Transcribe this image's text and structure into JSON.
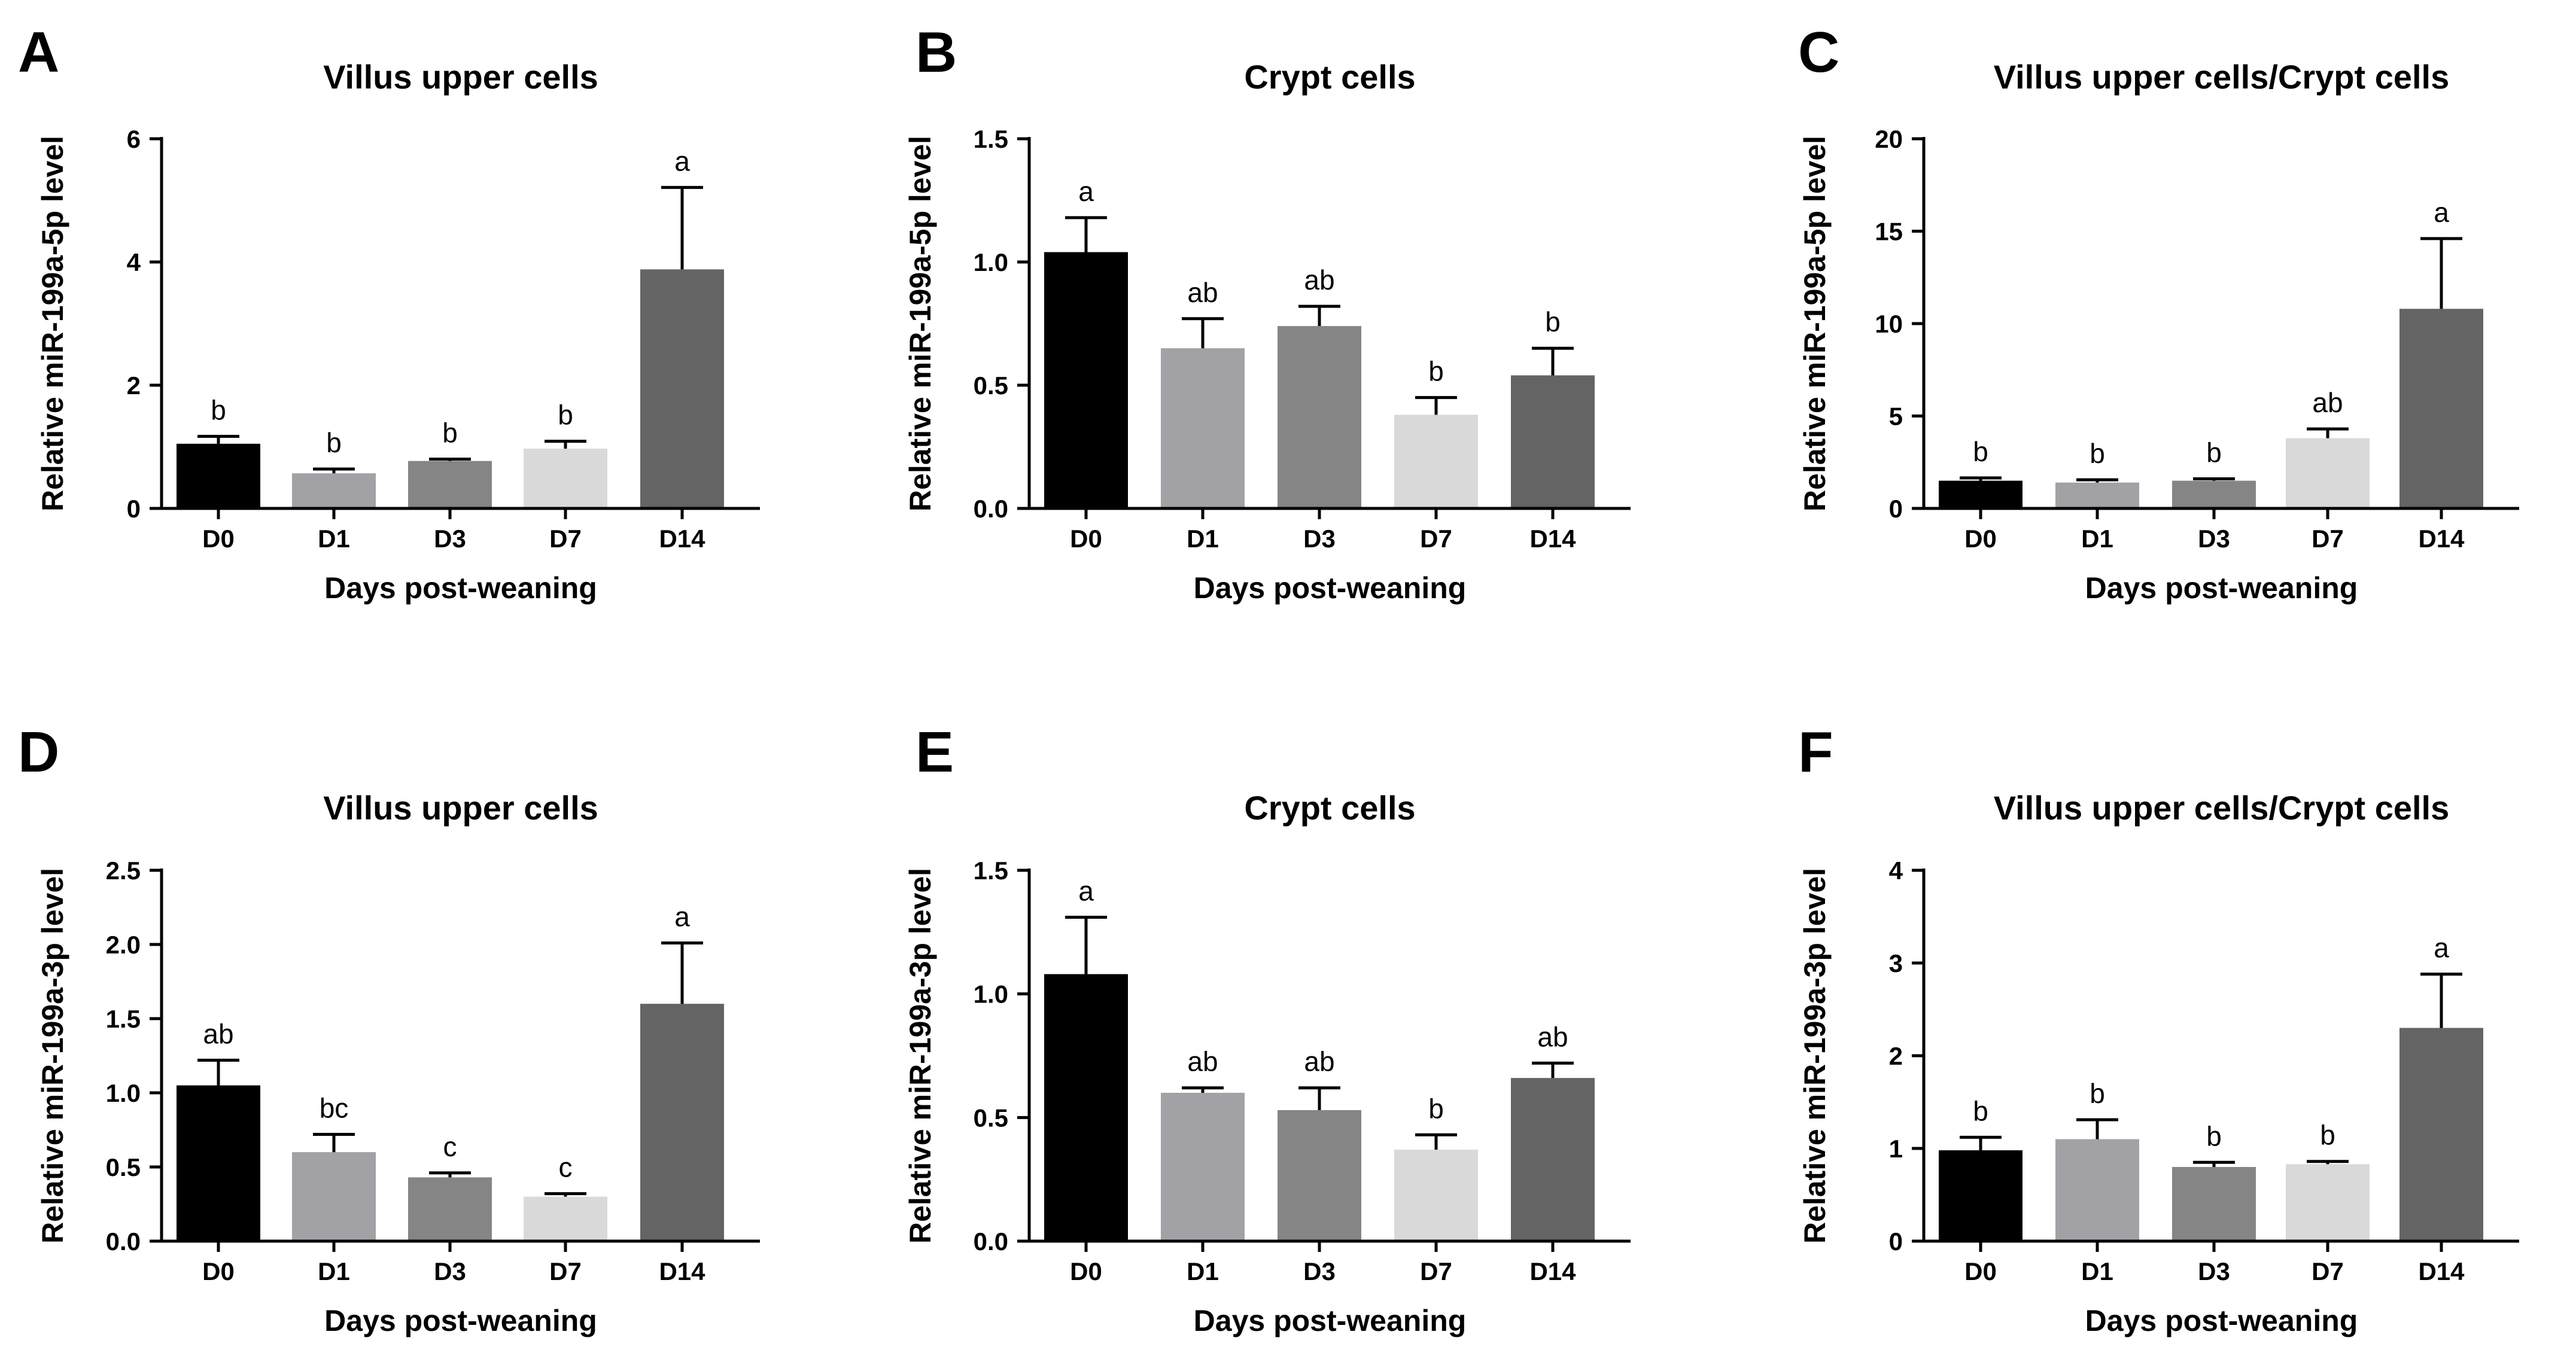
{
  "figure": {
    "name": "miR-199a post-weaning expression panels"
  },
  "colors": [
    "#000000",
    "#a2a2a6",
    "#858585",
    "#d9d9d9",
    "#646464"
  ],
  "chart_data": [
    {
      "panel": "A",
      "type": "bar",
      "title": "Villus upper cells",
      "xlabel": "Days post-weaning",
      "ylabel": "Relative miR-199a-5p level",
      "categories": [
        "D0",
        "D1",
        "D3",
        "D7",
        "D14"
      ],
      "values": [
        1.05,
        0.57,
        0.77,
        0.97,
        3.88
      ],
      "errors": [
        0.12,
        0.07,
        0.03,
        0.12,
        1.33
      ],
      "significance": [
        "b",
        "b",
        "b",
        "b",
        "a"
      ],
      "ylim": [
        0,
        6
      ],
      "yticks": [
        0,
        2,
        4,
        6
      ],
      "ytick_labels": [
        "0",
        "2",
        "4",
        "6"
      ]
    },
    {
      "panel": "B",
      "type": "bar",
      "title": "Crypt cells",
      "xlabel": "Days post-weaning",
      "ylabel": "Relative miR-199a-5p level",
      "categories": [
        "D0",
        "D1",
        "D3",
        "D7",
        "D14"
      ],
      "values": [
        1.04,
        0.65,
        0.74,
        0.38,
        0.54
      ],
      "errors": [
        0.14,
        0.12,
        0.08,
        0.07,
        0.11
      ],
      "significance": [
        "a",
        "ab",
        "ab",
        "b",
        "b"
      ],
      "ylim": [
        0,
        1.5
      ],
      "yticks": [
        0,
        0.5,
        1.0,
        1.5
      ],
      "ytick_labels": [
        "0.0",
        "0.5",
        "1.0",
        "1.5"
      ]
    },
    {
      "panel": "C",
      "type": "bar",
      "title": "Villus upper cells/Crypt cells",
      "xlabel": "Days post-weaning",
      "ylabel": "Relative miR-199a-5p level",
      "categories": [
        "D0",
        "D1",
        "D3",
        "D7",
        "D14"
      ],
      "values": [
        1.5,
        1.4,
        1.5,
        3.8,
        10.8
      ],
      "errors": [
        0.15,
        0.15,
        0.1,
        0.5,
        3.8
      ],
      "significance": [
        "b",
        "b",
        "b",
        "ab",
        "a"
      ],
      "ylim": [
        0,
        20
      ],
      "yticks": [
        0,
        5,
        10,
        15,
        20
      ],
      "ytick_labels": [
        "0",
        "5",
        "10",
        "15",
        "20"
      ]
    },
    {
      "panel": "D",
      "type": "bar",
      "title": "Villus upper cells",
      "xlabel": "Days post-weaning",
      "ylabel": "Relative miR-199a-3p level",
      "categories": [
        "D0",
        "D1",
        "D3",
        "D7",
        "D14"
      ],
      "values": [
        1.05,
        0.6,
        0.43,
        0.3,
        1.6
      ],
      "errors": [
        0.17,
        0.12,
        0.03,
        0.02,
        0.41
      ],
      "significance": [
        "ab",
        "bc",
        "c",
        "c",
        "a"
      ],
      "ylim": [
        0,
        2.5
      ],
      "yticks": [
        0,
        0.5,
        1.0,
        1.5,
        2.0,
        2.5
      ],
      "ytick_labels": [
        "0.0",
        "0.5",
        "1.0",
        "1.5",
        "2.0",
        "2.5"
      ]
    },
    {
      "panel": "E",
      "type": "bar",
      "title": "Crypt cells",
      "xlabel": "Days post-weaning",
      "ylabel": "Relative miR-199a-3p level",
      "categories": [
        "D0",
        "D1",
        "D3",
        "D7",
        "D14"
      ],
      "values": [
        1.08,
        0.6,
        0.53,
        0.37,
        0.66
      ],
      "errors": [
        0.23,
        0.02,
        0.09,
        0.06,
        0.06
      ],
      "significance": [
        "a",
        "ab",
        "ab",
        "b",
        "ab"
      ],
      "ylim": [
        0,
        1.5
      ],
      "yticks": [
        0,
        0.5,
        1.0,
        1.5
      ],
      "ytick_labels": [
        "0.0",
        "0.5",
        "1.0",
        "1.5"
      ]
    },
    {
      "panel": "F",
      "type": "bar",
      "title": "Villus upper cells/Crypt cells",
      "xlabel": "Days post-weaning",
      "ylabel": "Relative miR-199a-3p level",
      "categories": [
        "D0",
        "D1",
        "D3",
        "D7",
        "D14"
      ],
      "values": [
        0.98,
        1.1,
        0.8,
        0.83,
        2.3
      ],
      "errors": [
        0.14,
        0.21,
        0.05,
        0.03,
        0.58
      ],
      "significance": [
        "b",
        "b",
        "b",
        "b",
        "a"
      ],
      "ylim": [
        0,
        4
      ],
      "yticks": [
        0,
        1,
        2,
        3,
        4
      ],
      "ytick_labels": [
        "0",
        "1",
        "2",
        "3",
        "4"
      ]
    }
  ]
}
